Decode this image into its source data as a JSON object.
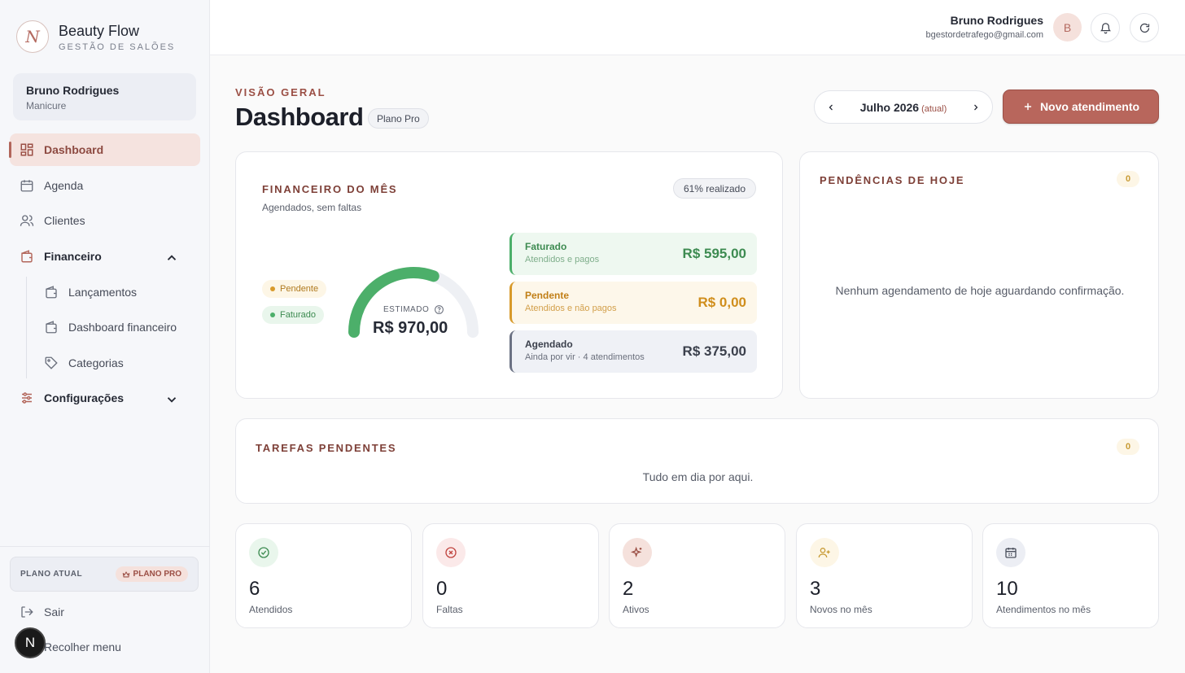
{
  "brand": {
    "name": "Beauty Flow",
    "subtitle": "GESTÃO DE SALÕES",
    "logo_letter": "N"
  },
  "sidebar": {
    "user": {
      "name": "Bruno Rodrigues",
      "role": "Manicure"
    },
    "items": [
      {
        "label": "Dashboard",
        "icon": "dashboard-grid-icon",
        "active": true
      },
      {
        "label": "Agenda",
        "icon": "calendar-icon"
      },
      {
        "label": "Clientes",
        "icon": "users-icon"
      },
      {
        "label": "Financeiro",
        "icon": "wallet-icon",
        "expanded": true
      },
      {
        "label": "Configurações",
        "icon": "sliders-icon",
        "expanded": false
      }
    ],
    "financeiro_sub": [
      {
        "label": "Lançamentos",
        "icon": "wallet-icon"
      },
      {
        "label": "Dashboard financeiro",
        "icon": "wallet-icon"
      },
      {
        "label": "Categorias",
        "icon": "tag-icon"
      }
    ],
    "plan": {
      "label": "PLANO ATUAL",
      "badge": "PLANO PRO"
    },
    "logout": "Sair",
    "collapse": "Recolher menu",
    "fab_letter": "N"
  },
  "header": {
    "user_name": "Bruno Rodrigues",
    "user_email": "bgestordetrafego@gmail.com",
    "avatar_letter": "B"
  },
  "page": {
    "eyebrow": "VISÃO GERAL",
    "title": "Dashboard",
    "plan_pill": "Plano Pro",
    "month": "Julho 2026",
    "month_note": "(atual)",
    "cta": "Novo atendimento"
  },
  "finance": {
    "title": "FINANCEIRO DO MÊS",
    "subtitle": "Agendados, sem faltas",
    "progress_badge": "61% realizado",
    "progress_fraction": 0.61,
    "legend": {
      "pending": "Pendente",
      "billed": "Faturado"
    },
    "gauge_label": "ESTIMADO",
    "gauge_value": "R$ 970,00",
    "rows": {
      "billed": {
        "title": "Faturado",
        "sub": "Atendidos e pagos",
        "value": "R$ 595,00"
      },
      "pending": {
        "title": "Pendente",
        "sub": "Atendidos e não pagos",
        "value": "R$ 0,00"
      },
      "scheduled": {
        "title": "Agendado",
        "sub": "Ainda por vir · 4 atendimentos",
        "value": "R$ 375,00"
      }
    },
    "colors": {
      "billed": "#4caf6a",
      "pending": "#d89a2b",
      "track": "#eef0f4"
    }
  },
  "today": {
    "title": "PENDÊNCIAS DE HOJE",
    "count": "0",
    "empty": "Nenhum agendamento de hoje aguardando confirmação."
  },
  "tasks": {
    "title": "TAREFAS PENDENTES",
    "count": "0",
    "empty": "Tudo em dia por aqui."
  },
  "kpis": [
    {
      "value": "6",
      "label": "Atendidos",
      "icon": "check-circle-icon",
      "bg": "#e9f6ec",
      "fg": "#3d8b51"
    },
    {
      "value": "0",
      "label": "Faltas",
      "icon": "x-circle-icon",
      "bg": "#fbe9e9",
      "fg": "#c0443f"
    },
    {
      "value": "2",
      "label": "Ativos",
      "icon": "sparkles-icon",
      "bg": "#f5e1dc",
      "fg": "#9b4f45"
    },
    {
      "value": "3",
      "label": "Novos no mês",
      "icon": "user-plus-icon",
      "bg": "#fdf6e6",
      "fg": "#c89b35"
    },
    {
      "value": "10",
      "label": "Atendimentos no mês",
      "icon": "calendar-icon",
      "bg": "#eceef4",
      "fg": "#4c515e"
    }
  ],
  "accent": "#b8665c"
}
